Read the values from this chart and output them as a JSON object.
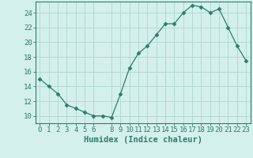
{
  "x": [
    0,
    1,
    2,
    3,
    4,
    5,
    6,
    7,
    8,
    9,
    10,
    11,
    12,
    13,
    14,
    15,
    16,
    17,
    18,
    19,
    20,
    21,
    22,
    23
  ],
  "y": [
    15,
    14,
    13,
    11.5,
    11,
    10.5,
    10,
    10,
    9.8,
    13,
    16.5,
    18.5,
    19.5,
    21,
    22.5,
    22.5,
    24,
    25,
    24.8,
    24,
    24.5,
    22,
    19.5,
    17.5
  ],
  "line_color": "#2d7d6e",
  "marker": "D",
  "marker_size": 2.5,
  "bg_color": "#d4f0ec",
  "grid_color": "#b5d9d4",
  "xlabel": "Humidex (Indice chaleur)",
  "xlabel_fontsize": 7.5,
  "tick_fontsize": 6.5,
  "ylim": [
    9,
    25.5
  ],
  "yticks": [
    10,
    12,
    14,
    16,
    18,
    20,
    22,
    24
  ],
  "xticks": [
    0,
    1,
    2,
    3,
    4,
    5,
    6,
    8,
    9,
    10,
    11,
    12,
    13,
    14,
    15,
    16,
    17,
    18,
    19,
    20,
    21,
    22,
    23
  ],
  "xlim": [
    -0.5,
    23.5
  ]
}
